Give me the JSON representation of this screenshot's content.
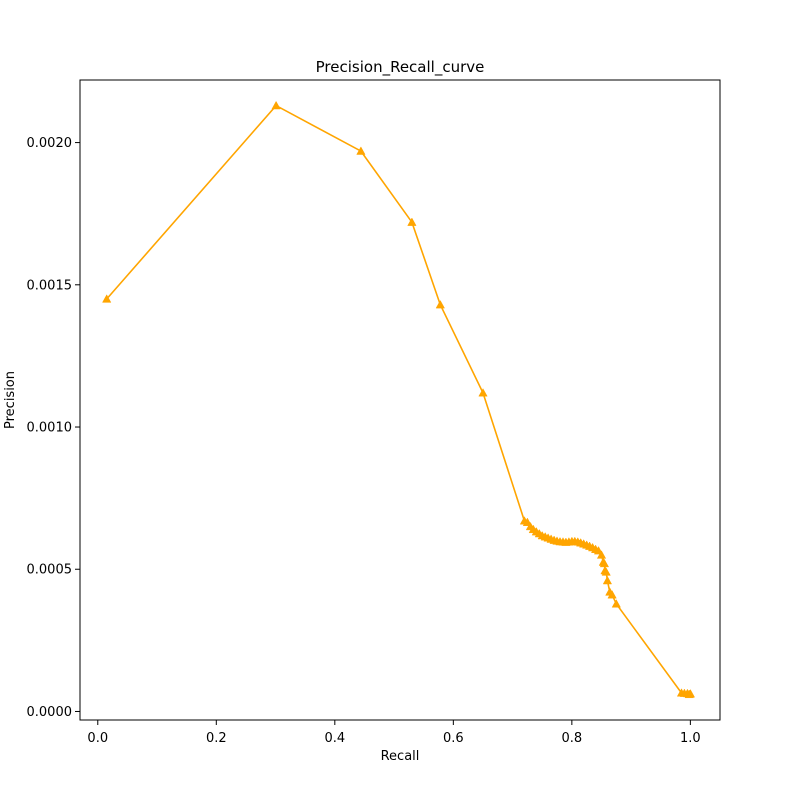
{
  "chart_data": {
    "type": "line",
    "title": "Precision_Recall_curve",
    "xlabel": "Recall",
    "ylabel": "Precision",
    "xlim": [
      -0.03,
      1.05
    ],
    "ylim": [
      -3e-05,
      0.00222
    ],
    "grid": false,
    "legend": "none",
    "x_ticks": [
      0.0,
      0.2,
      0.4,
      0.6,
      0.8,
      1.0
    ],
    "x_tick_labels": [
      "0.0",
      "0.2",
      "0.4",
      "0.6",
      "0.8",
      "1.0"
    ],
    "y_ticks": [
      0.0,
      0.0005,
      0.001,
      0.0015,
      0.002
    ],
    "y_tick_labels": [
      "0.0000",
      "0.0005",
      "0.0010",
      "0.0015",
      "0.0020"
    ],
    "series_color": "#ffa500",
    "marker": "triangle",
    "x": [
      0.015,
      0.301,
      0.444,
      0.53,
      0.578,
      0.65,
      0.72,
      0.725,
      0.73,
      0.735,
      0.74,
      0.745,
      0.75,
      0.755,
      0.76,
      0.765,
      0.77,
      0.775,
      0.78,
      0.785,
      0.79,
      0.795,
      0.8,
      0.805,
      0.81,
      0.815,
      0.82,
      0.825,
      0.83,
      0.835,
      0.84,
      0.845,
      0.85,
      0.853,
      0.855,
      0.856,
      0.858,
      0.86,
      0.864,
      0.868,
      0.875,
      0.985,
      0.99,
      0.995,
      0.998,
      1.0
    ],
    "y": [
      0.00145,
      0.00213,
      0.00197,
      0.00172,
      0.00143,
      0.00112,
      0.00067,
      0.000665,
      0.00065,
      0.00064,
      0.000632,
      0.000625,
      0.000618,
      0.000614,
      0.00061,
      0.000606,
      0.000602,
      0.000599,
      0.000597,
      0.000596,
      0.000595,
      0.000596,
      0.000598,
      0.000598,
      0.000596,
      0.000593,
      0.000589,
      0.000585,
      0.000581,
      0.000576,
      0.00057,
      0.000565,
      0.00055,
      0.000525,
      0.00052,
      0.000495,
      0.00049,
      0.00046,
      0.00042,
      0.00041,
      0.000378,
      6.5e-05,
      6.4e-05,
      6.3e-05,
      6e-05,
      6.2e-05
    ]
  }
}
